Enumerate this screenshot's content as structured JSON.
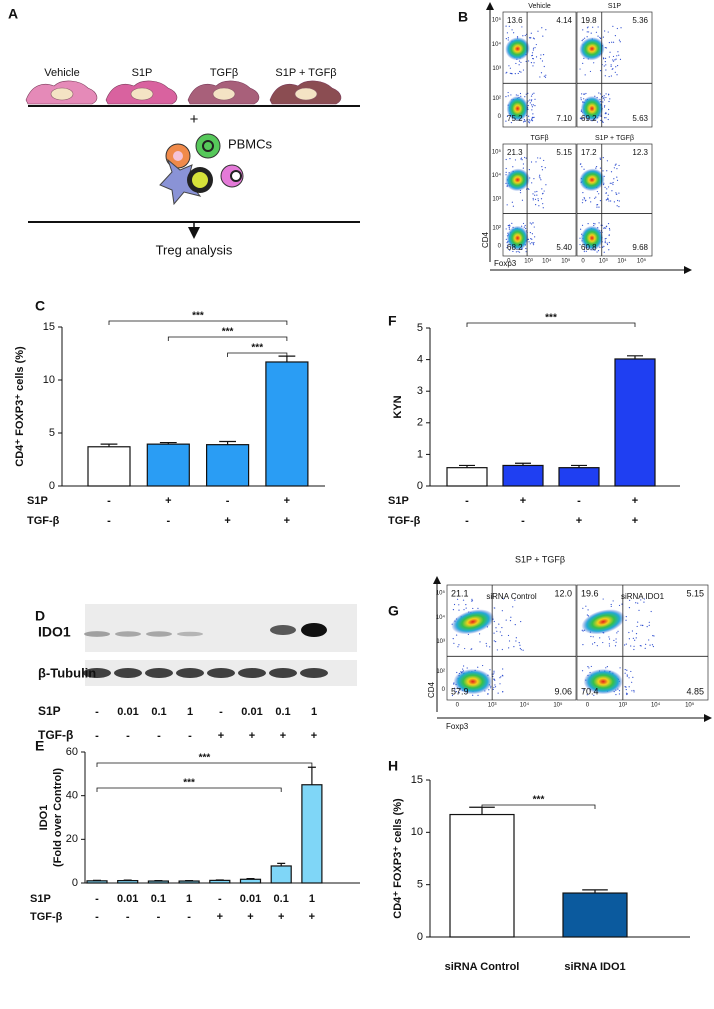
{
  "panel_labels": [
    "A",
    "B",
    "C",
    "D",
    "E",
    "F",
    "G",
    "H"
  ],
  "schematic": {
    "conditions": [
      "Vehicle",
      "S1P",
      "TGFβ",
      "S1P + TGFβ"
    ],
    "plus": "+",
    "cells_label": "PBMCs",
    "readout": "Treg analysis"
  },
  "flow_b": {
    "x_label": "Foxp3",
    "y_label": "CD4",
    "y_ticks": [
      "10⁵",
      "10⁴",
      "10³",
      "10²",
      "0"
    ],
    "x_ticks": [
      "0",
      "10³",
      "10⁴",
      "10⁵"
    ],
    "plots": [
      {
        "title": "Vehicle",
        "quadrants": [
          "13.6",
          "4.14",
          "75.2",
          "7.10"
        ]
      },
      {
        "title": "S1P",
        "quadrants": [
          "19.8",
          "5.36",
          "69.2",
          "5.63"
        ]
      },
      {
        "title": "TGFβ",
        "quadrants": [
          "21.3",
          "5.15",
          "68.2",
          "5.40"
        ]
      },
      {
        "title": "S1P + TGFβ",
        "quadrants": [
          "17.2",
          "12.3",
          "60.8",
          "9.68"
        ]
      }
    ]
  },
  "blot": {
    "bands": [
      "IDO1",
      "β-Tubulin"
    ],
    "rows": [
      {
        "name": "S1P",
        "labels": [
          "-",
          "0.01",
          "0.1",
          "1",
          "-",
          "0.01",
          "0.1",
          "1"
        ]
      },
      {
        "name": "TGF-β",
        "labels": [
          "-",
          "-",
          "-",
          "-",
          "+",
          "+",
          "+",
          "+"
        ]
      }
    ]
  },
  "flow_g": {
    "title": "S1P + TGFβ",
    "x_label": "Foxp3",
    "y_label": "CD4",
    "y_ticks": [
      "10⁵",
      "10⁴",
      "10³",
      "10²",
      "0"
    ],
    "x_ticks": [
      "0",
      "10³",
      "10⁴",
      "10⁵"
    ],
    "plots": [
      {
        "title": "siRNA Control",
        "quadrants": [
          "21.1",
          "12.0",
          "57.9",
          "9.06"
        ]
      },
      {
        "title": "siRNA IDO1",
        "quadrants": [
          "19.6",
          "5.15",
          "70.4",
          "4.85"
        ]
      }
    ]
  },
  "chart_data": [
    {
      "type": "bar",
      "y_label": [
        "CD4⁺ FOXP3⁺ cells (%)"
      ],
      "ylim": [
        0,
        15
      ],
      "yticks": [
        0,
        5,
        10,
        15
      ],
      "values": [
        3.7,
        3.95,
        3.9,
        11.7
      ],
      "errors": [
        0.25,
        0.15,
        0.3,
        0.55
      ],
      "colors": [
        "#ffffff",
        "#2a9df4",
        "#2a9df4",
        "#2a9df4"
      ],
      "conditions": [
        {
          "name": "S1P",
          "labels": [
            "-",
            "+",
            "-",
            "+"
          ]
        },
        {
          "name": "TGF-β",
          "labels": [
            "-",
            "-",
            "+",
            "+"
          ]
        }
      ],
      "significance": [
        {
          "from": 0,
          "to": 3,
          "label": "***"
        },
        {
          "from": 1,
          "to": 3,
          "label": "***"
        },
        {
          "from": 2,
          "to": 3,
          "label": "***"
        }
      ]
    },
    {
      "type": "bar",
      "y_label": [
        "KYN"
      ],
      "ylim": [
        0,
        5
      ],
      "yticks": [
        0,
        1,
        2,
        3,
        4,
        5
      ],
      "values": [
        0.58,
        0.65,
        0.58,
        4.02
      ],
      "errors": [
        0.07,
        0.07,
        0.07,
        0.1
      ],
      "colors": [
        "#ffffff",
        "#1f3ff2",
        "#1f3ff2",
        "#1f3ff2"
      ],
      "conditions": [
        {
          "name": "S1P",
          "labels": [
            "-",
            "+",
            "-",
            "+"
          ]
        },
        {
          "name": "TGF-β",
          "labels": [
            "-",
            "-",
            "+",
            "+"
          ]
        }
      ],
      "significance": [
        {
          "from": 0,
          "to": 3,
          "label": "***"
        }
      ]
    },
    {
      "type": "bar",
      "y_label": [
        "IDO1",
        "(Fold over Control)"
      ],
      "ylim": [
        0,
        60
      ],
      "yticks": [
        0,
        20,
        40,
        60
      ],
      "values": [
        1,
        1.1,
        0.9,
        0.9,
        1.2,
        1.7,
        7.8,
        45
      ],
      "errors": [
        0.2,
        0.2,
        0.2,
        0.2,
        0.2,
        0.3,
        1.2,
        8
      ],
      "colors": [
        "#7fd6f7",
        "#7fd6f7",
        "#7fd6f7",
        "#7fd6f7",
        "#7fd6f7",
        "#7fd6f7",
        "#7fd6f7",
        "#7fd6f7"
      ],
      "conditions": [
        {
          "name": "S1P",
          "labels": [
            "-",
            "0.01",
            "0.1",
            "1",
            "-",
            "0.01",
            "0.1",
            "1"
          ]
        },
        {
          "name": "TGF-β",
          "labels": [
            "-",
            "-",
            "-",
            "-",
            "+",
            "+",
            "+",
            "+"
          ]
        }
      ],
      "significance": [
        {
          "from": 0,
          "to": 7,
          "label": "***"
        },
        {
          "from": 0,
          "to": 6,
          "label": "***"
        }
      ]
    },
    {
      "type": "bar",
      "y_label": [
        "CD4⁺ FOXP3⁺ cells (%)"
      ],
      "ylim": [
        0,
        15
      ],
      "yticks": [
        0,
        5,
        10,
        15
      ],
      "categories": [
        "siRNA Control",
        "siRNA IDO1"
      ],
      "values": [
        11.7,
        4.2
      ],
      "errors": [
        0.7,
        0.3
      ],
      "colors": [
        "#ffffff",
        "#0b5a9e"
      ],
      "significance": [
        {
          "from": 0,
          "to": 1,
          "label": "***"
        }
      ]
    }
  ]
}
